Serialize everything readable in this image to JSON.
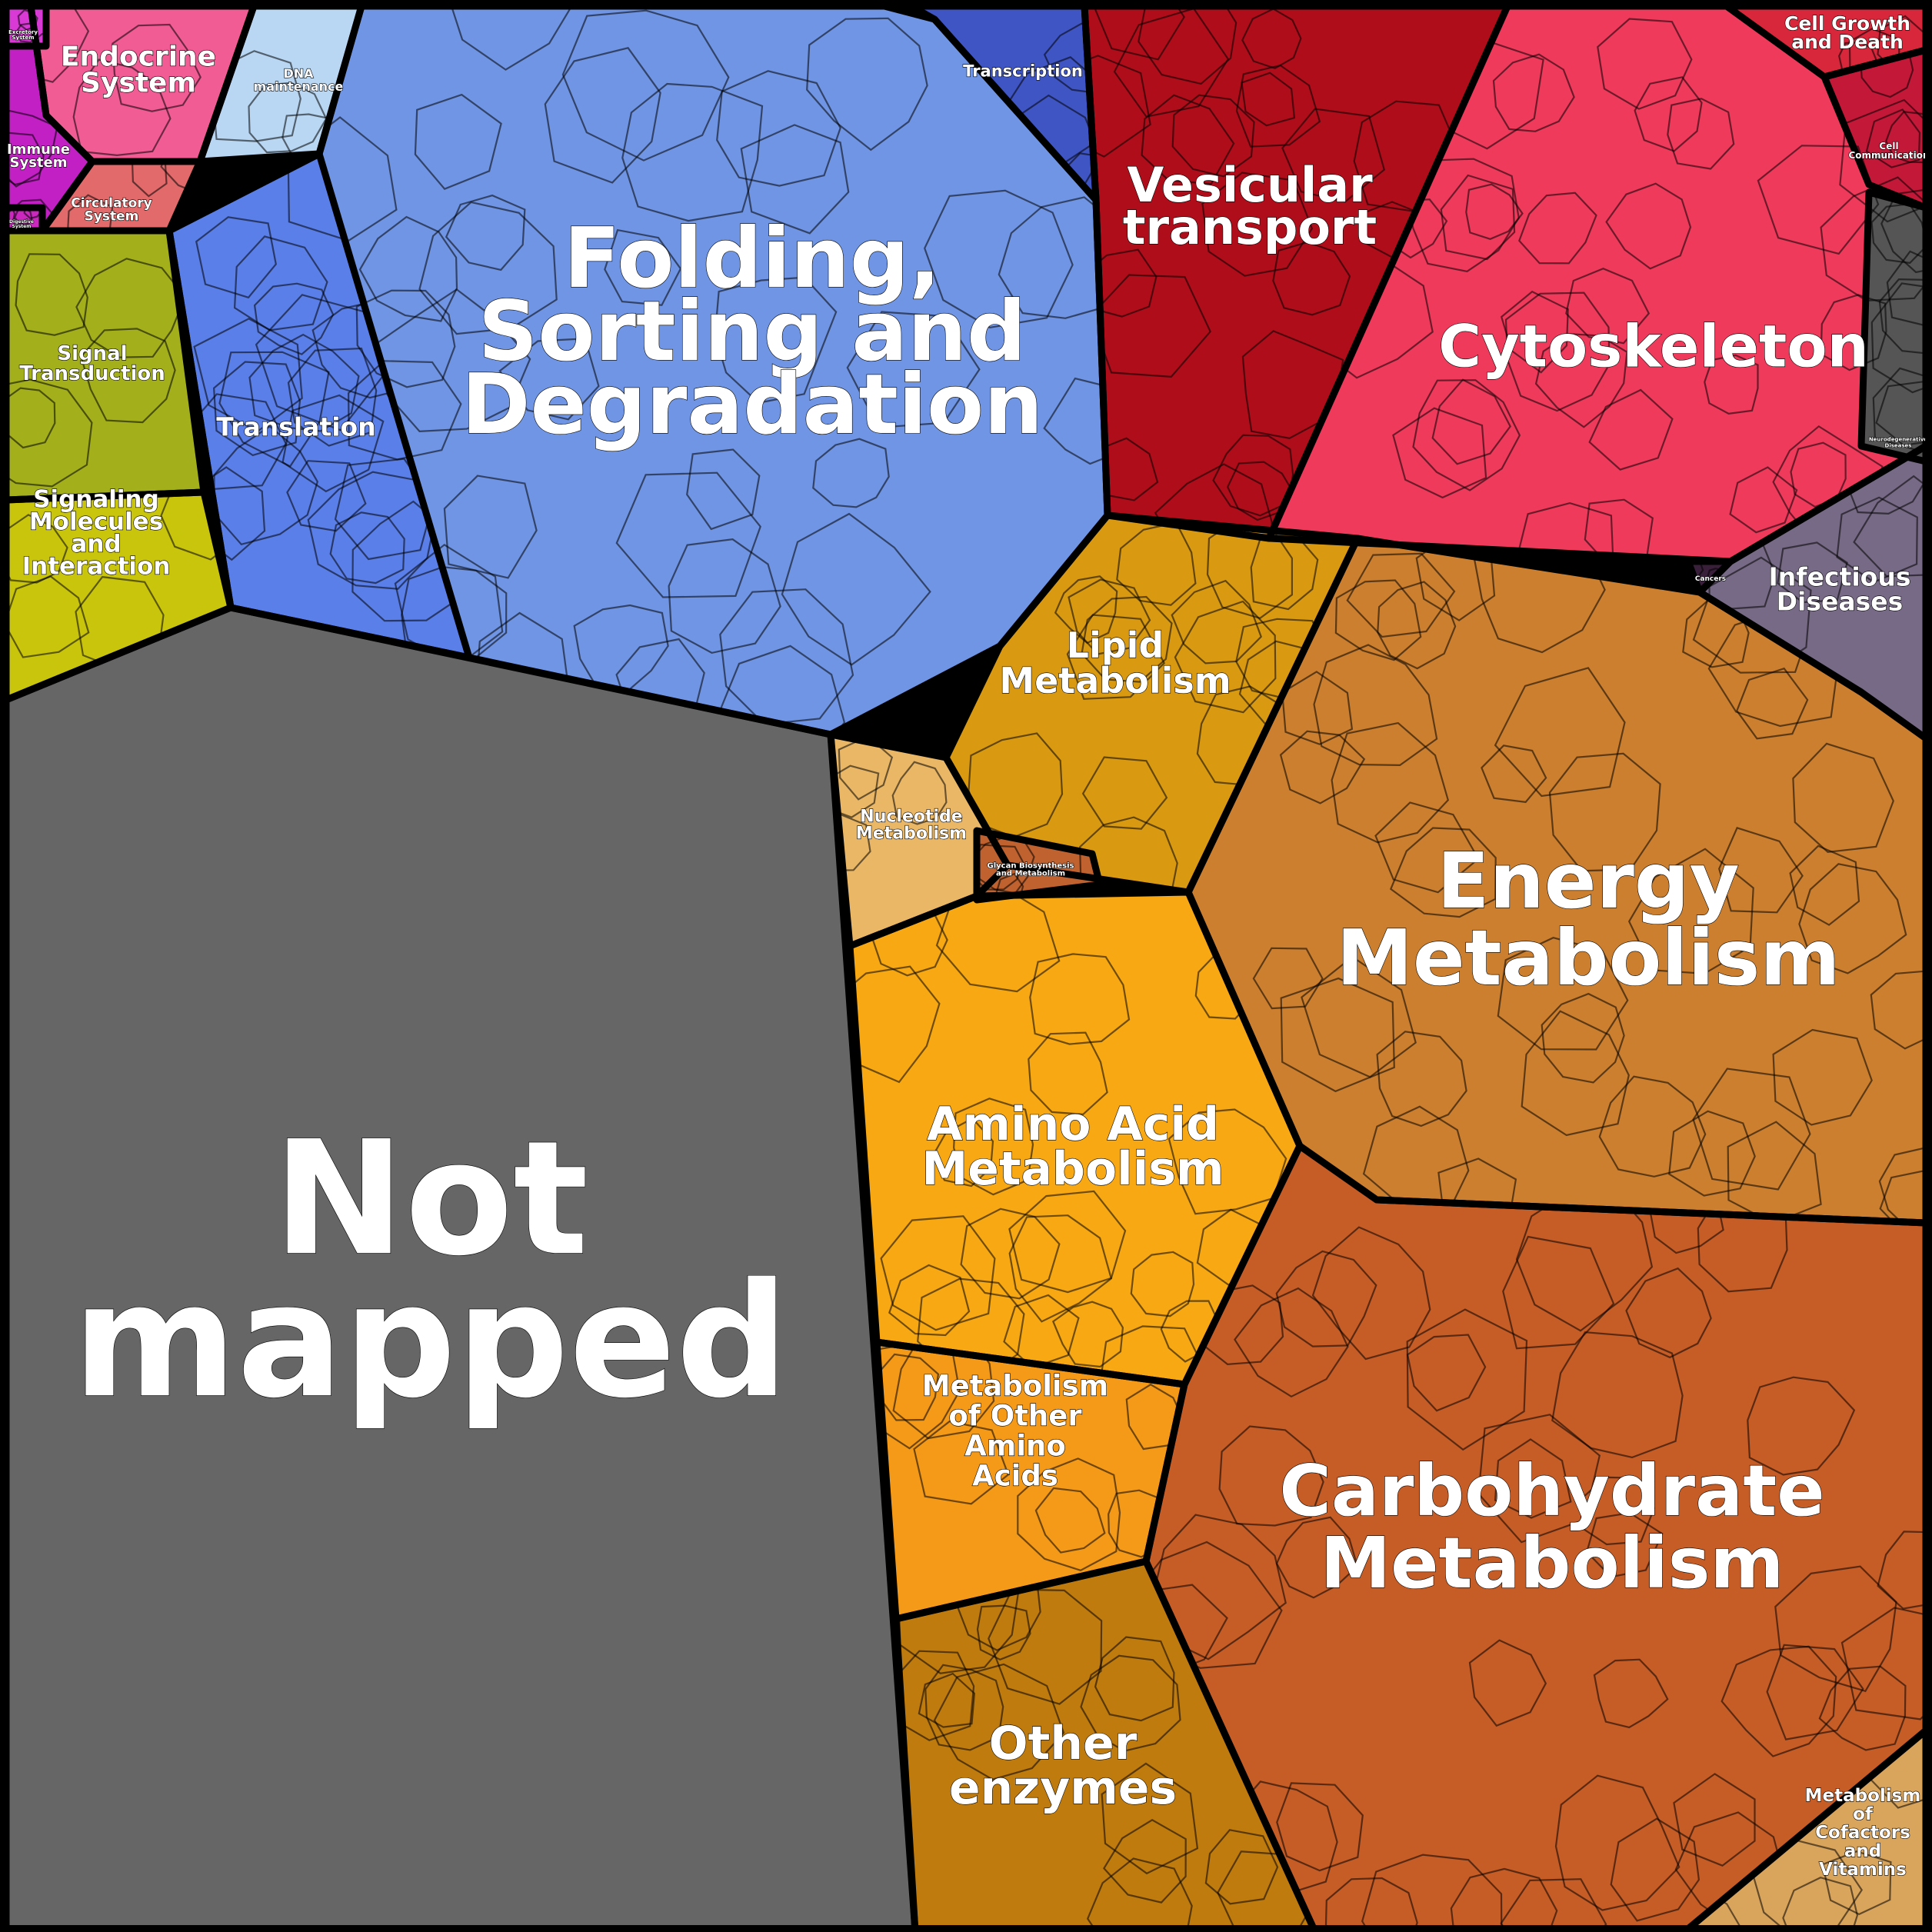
{
  "title": "",
  "colors": {
    "not_mapped": "#666666",
    "folding": "#6f95e4",
    "translation": "#5a7fe8",
    "transcription": "#3f55c4",
    "dna": "#b9d7f3",
    "vesicular": "#b00d1b",
    "cytoskeleton": "#ef3a5b",
    "cell_growth": "#d8263a",
    "cell_comm": "#c41838",
    "infectious": "#776a86",
    "cancers": "#3a1f3a",
    "endocrine": "#f25c94",
    "immune": "#c21fc4",
    "circulatory": "#e26a6a",
    "digestive": "#cc28c0",
    "excretory": "#d93ad6",
    "signal": "#a3b01c",
    "signaling": "#c9c50c",
    "lipid": "#d99a12",
    "nucleotide": "#e9b766",
    "glycan": "#c0622f",
    "amino": "#f7a812",
    "other_amino": "#f49a18",
    "other_enzymes": "#bf7b0d",
    "energy": "#cc7f2f",
    "carbohydrate": "#c65c26",
    "cofactors": "#d9a45c"
  },
  "categories": [
    {
      "id": "not_mapped",
      "label_lines": [
        "Not",
        "mapped"
      ]
    },
    {
      "id": "folding",
      "label_lines": [
        "Folding,",
        "Sorting and",
        "Degradation"
      ]
    },
    {
      "id": "translation",
      "label_lines": [
        "Translation"
      ]
    },
    {
      "id": "transcription",
      "label_lines": [
        "Transcription"
      ]
    },
    {
      "id": "dna",
      "label_lines": [
        "DNA",
        "maintenance"
      ]
    },
    {
      "id": "vesicular",
      "label_lines": [
        "Vesicular",
        "transport"
      ]
    },
    {
      "id": "cytoskeleton",
      "label_lines": [
        "Cytoskeleton"
      ]
    },
    {
      "id": "cell_growth",
      "label_lines": [
        "Cell Growth",
        "and Death"
      ]
    },
    {
      "id": "cell_comm",
      "label_lines": [
        "Cell",
        "Communication"
      ]
    },
    {
      "id": "infectious",
      "label_lines": [
        "Infectious",
        "Diseases"
      ]
    },
    {
      "id": "cancers",
      "label_lines": [
        "Cancers"
      ]
    },
    {
      "id": "neuro",
      "label_lines": [
        "Neurodegenerative",
        "Diseases"
      ]
    },
    {
      "id": "endocrine",
      "label_lines": [
        "Endocrine",
        "System"
      ]
    },
    {
      "id": "immune",
      "label_lines": [
        "Immune",
        "System"
      ]
    },
    {
      "id": "circulatory",
      "label_lines": [
        "Circulatory",
        "System"
      ]
    },
    {
      "id": "digestive",
      "label_lines": [
        "Digestive",
        "System"
      ]
    },
    {
      "id": "excretory",
      "label_lines": [
        "Excretory",
        "System"
      ]
    },
    {
      "id": "signal",
      "label_lines": [
        "Signal",
        "Transduction"
      ]
    },
    {
      "id": "signaling",
      "label_lines": [
        "Signaling",
        "Molecules",
        "and",
        "Interaction"
      ]
    },
    {
      "id": "lipid",
      "label_lines": [
        "Lipid",
        "Metabolism"
      ]
    },
    {
      "id": "nucleotide",
      "label_lines": [
        "Nucleotide",
        "Metabolism"
      ]
    },
    {
      "id": "glycan",
      "label_lines": [
        "Glycan Biosynthesis",
        "and Metabolism"
      ]
    },
    {
      "id": "amino",
      "label_lines": [
        "Amino Acid",
        "Metabolism"
      ]
    },
    {
      "id": "other_amino",
      "label_lines": [
        "Metabolism",
        "of Other",
        "Amino",
        "Acids"
      ]
    },
    {
      "id": "other_enzymes",
      "label_lines": [
        "Other",
        "enzymes"
      ]
    },
    {
      "id": "energy",
      "label_lines": [
        "Energy",
        "Metabolism"
      ]
    },
    {
      "id": "carbohydrate",
      "label_lines": [
        "Carbohydrate",
        "Metabolism"
      ]
    },
    {
      "id": "cofactors",
      "label_lines": [
        "Metabolism",
        "of",
        "Cofactors",
        "and",
        "Vitamins"
      ]
    }
  ]
}
